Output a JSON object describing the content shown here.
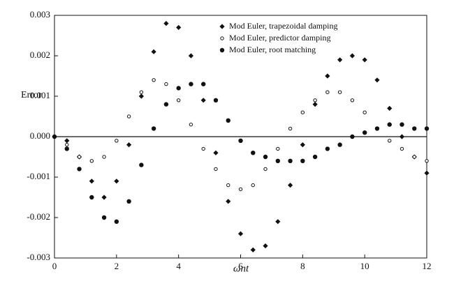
{
  "chart_data": {
    "type": "scatter",
    "x_label": "ωnt",
    "y_label": "Error",
    "x": [
      0,
      0.4,
      0.8,
      1.2,
      1.6,
      2.0,
      2.4,
      2.8,
      3.2,
      3.6,
      4.0,
      4.4,
      4.8,
      5.2,
      5.6,
      6.0,
      6.4,
      6.8,
      7.2,
      7.6,
      8.0,
      8.4,
      8.8,
      9.2,
      9.6,
      10.0,
      10.4,
      10.8,
      11.2,
      11.6,
      12.0
    ],
    "series": [
      {
        "name": "Mod Euler, trapezoidal damping",
        "color": "#111111",
        "marker": "diamond",
        "values": [
          0,
          -0.0001,
          -0.0005,
          -0.0011,
          -0.0015,
          -0.0011,
          -0.0002,
          0.001,
          0.0021,
          0.0028,
          0.0027,
          0.002,
          0.0009,
          -0.0004,
          -0.0016,
          -0.0024,
          -0.0028,
          -0.0027,
          -0.0021,
          -0.0012,
          -0.0002,
          0.0008,
          0.0015,
          0.0019,
          0.002,
          0.0019,
          0.0014,
          0.0007,
          0,
          -0.0005,
          -0.0009
        ]
      },
      {
        "name": "Mod Euler, predictor damping",
        "color": "#111111",
        "marker": "open-circle",
        "values": [
          0,
          -0.0002,
          -0.0005,
          -0.0006,
          -0.0005,
          -0.0001,
          0.0005,
          0.0011,
          0.0014,
          0.0013,
          0.0009,
          0.0003,
          -0.0003,
          -0.0008,
          -0.0012,
          -0.0013,
          -0.0012,
          -0.0008,
          -0.0003,
          0.0002,
          0.0006,
          0.0009,
          0.0011,
          0.0011,
          0.0009,
          0.0006,
          0.0002,
          -0.0001,
          -0.0003,
          -0.0005,
          -0.0006
        ]
      },
      {
        "name": "Mod Euler, root matching",
        "color": "#111111",
        "marker": "filled-circle",
        "values": [
          0,
          -0.0003,
          -0.0008,
          -0.0015,
          -0.002,
          -0.0021,
          -0.0016,
          -0.0007,
          0.0002,
          0.0008,
          0.0012,
          0.0013,
          0.0013,
          0.0009,
          0.0004,
          -0.0001,
          -0.0004,
          -0.0005,
          -0.0006,
          -0.0006,
          -0.0006,
          -0.0005,
          -0.0003,
          -0.0002,
          0,
          0.0001,
          0.0002,
          0.0003,
          0.0003,
          0.0002,
          0.0002
        ]
      }
    ],
    "xlim": [
      0,
      12
    ],
    "ylim": [
      -0.003,
      0.003
    ],
    "xticks": [
      0,
      2,
      4,
      6,
      8,
      10,
      12
    ],
    "yticks": [
      -0.003,
      -0.002,
      -0.001,
      {
        "value": 0,
        "label": "0.000"
      },
      0.001,
      0.002,
      0.003
    ],
    "zero_line": true,
    "legend": "top-right"
  }
}
